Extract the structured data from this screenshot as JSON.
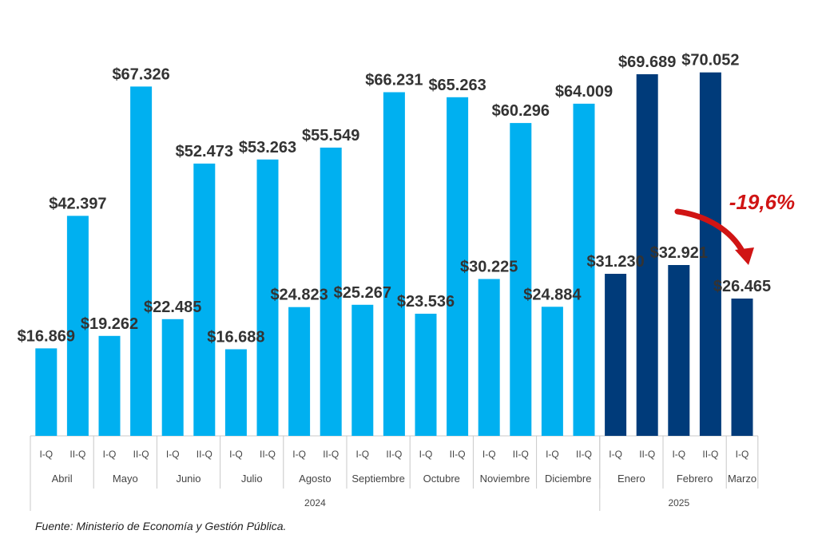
{
  "chart_data": {
    "type": "bar",
    "title": "",
    "xlabel": "",
    "ylabel": "",
    "ylim": [
      0,
      75000
    ],
    "grid": false,
    "legend": "none",
    "colors": {
      "2024": "#00b0f0",
      "2025": "#003b7a",
      "annotation": "#d01414"
    },
    "years": [
      {
        "label": "2024",
        "months": [
          "Abril",
          "Mayo",
          "Junio",
          "Julio",
          "Agosto",
          "Septiembre",
          "Octubre",
          "Noviembre",
          "Diciembre"
        ]
      },
      {
        "label": "2025",
        "months": [
          "Enero",
          "Febrero",
          "Marzo"
        ]
      }
    ],
    "bars": [
      {
        "month": "Abril",
        "half": "I-Q",
        "year": "2024",
        "value": 16869,
        "label": "$16.869"
      },
      {
        "month": "Abril",
        "half": "II-Q",
        "year": "2024",
        "value": 42397,
        "label": "$42.397"
      },
      {
        "month": "Mayo",
        "half": "I-Q",
        "year": "2024",
        "value": 19262,
        "label": "$19.262"
      },
      {
        "month": "Mayo",
        "half": "II-Q",
        "year": "2024",
        "value": 67326,
        "label": "$67.326"
      },
      {
        "month": "Junio",
        "half": "I-Q",
        "year": "2024",
        "value": 22485,
        "label": "$22.485"
      },
      {
        "month": "Junio",
        "half": "II-Q",
        "year": "2024",
        "value": 52473,
        "label": "$52.473"
      },
      {
        "month": "Julio",
        "half": "I-Q",
        "year": "2024",
        "value": 16688,
        "label": "$16.688"
      },
      {
        "month": "Julio",
        "half": "II-Q",
        "year": "2024",
        "value": 53263,
        "label": "$53.263"
      },
      {
        "month": "Agosto",
        "half": "I-Q",
        "year": "2024",
        "value": 24823,
        "label": "$24.823"
      },
      {
        "month": "Agosto",
        "half": "II-Q",
        "year": "2024",
        "value": 55549,
        "label": "$55.549"
      },
      {
        "month": "Septiembre",
        "half": "I-Q",
        "year": "2024",
        "value": 25267,
        "label": "$25.267"
      },
      {
        "month": "Septiembre",
        "half": "II-Q",
        "year": "2024",
        "value": 66231,
        "label": "$66.231"
      },
      {
        "month": "Octubre",
        "half": "I-Q",
        "year": "2024",
        "value": 23536,
        "label": "$23.536"
      },
      {
        "month": "Octubre",
        "half": "II-Q",
        "year": "2024",
        "value": 65263,
        "label": "$65.263"
      },
      {
        "month": "Noviembre",
        "half": "I-Q",
        "year": "2024",
        "value": 30225,
        "label": "$30.225"
      },
      {
        "month": "Noviembre",
        "half": "II-Q",
        "year": "2024",
        "value": 60296,
        "label": "$60.296"
      },
      {
        "month": "Diciembre",
        "half": "I-Q",
        "year": "2024",
        "value": 24884,
        "label": "$24.884"
      },
      {
        "month": "Diciembre",
        "half": "II-Q",
        "year": "2024",
        "value": 64009,
        "label": "$64.009"
      },
      {
        "month": "Enero",
        "half": "I-Q",
        "year": "2025",
        "value": 31230,
        "label": "$31.230"
      },
      {
        "month": "Enero",
        "half": "II-Q",
        "year": "2025",
        "value": 69689,
        "label": "$69.689"
      },
      {
        "month": "Febrero",
        "half": "I-Q",
        "year": "2025",
        "value": 32921,
        "label": "$32.921"
      },
      {
        "month": "Febrero",
        "half": "II-Q",
        "year": "2025",
        "value": 70052,
        "label": "$70.052"
      },
      {
        "month": "Marzo",
        "half": "I-Q",
        "year": "2025",
        "value": 26465,
        "label": "$26.465"
      }
    ],
    "annotation": "-19,6%"
  },
  "source": "Fuente: Ministerio de Economía y Gestión Pública."
}
